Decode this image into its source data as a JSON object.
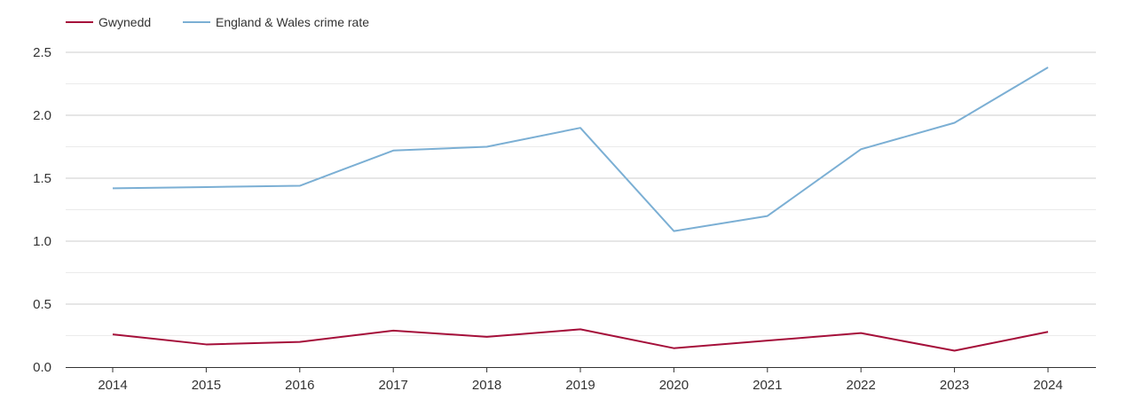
{
  "chart_data": {
    "type": "line",
    "categories": [
      "2014",
      "2015",
      "2016",
      "2017",
      "2018",
      "2019",
      "2020",
      "2021",
      "2022",
      "2023",
      "2024"
    ],
    "series": [
      {
        "name": "Gwynedd",
        "color": "#a50f3a",
        "values": [
          0.26,
          0.18,
          0.2,
          0.29,
          0.24,
          0.3,
          0.15,
          0.21,
          0.27,
          0.13,
          0.28
        ]
      },
      {
        "name": "England & Wales crime rate",
        "color": "#7bafd4",
        "values": [
          1.42,
          1.43,
          1.44,
          1.72,
          1.75,
          1.9,
          1.08,
          1.2,
          1.73,
          1.94,
          2.38
        ]
      }
    ],
    "yticks": [
      "0.0",
      "0.5",
      "1.0",
      "1.5",
      "2.0",
      "2.5"
    ],
    "ylim": [
      0,
      2.5
    ],
    "grid": true,
    "legend": "top-left"
  }
}
